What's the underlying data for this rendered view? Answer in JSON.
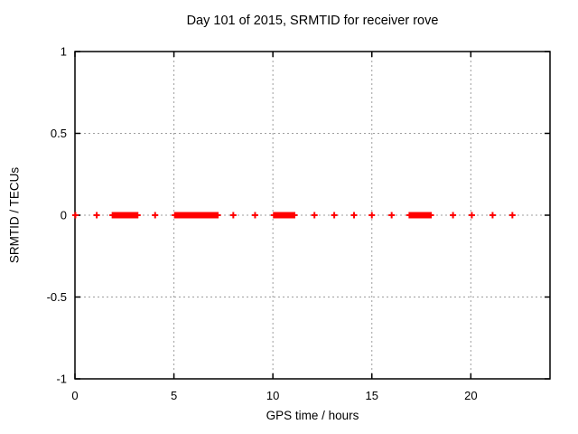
{
  "chart_data": {
    "type": "scatter",
    "title": "Day 101 of 2015, SRMTID for receiver rove",
    "xlabel": "GPS time / hours",
    "ylabel": "SRMTID / TECUs",
    "xlim": [
      0,
      24
    ],
    "ylim": [
      -1,
      1
    ],
    "x_ticks": [
      0,
      5,
      10,
      15,
      20
    ],
    "x_tick_labels": [
      "0",
      "5",
      "10",
      "15",
      "20"
    ],
    "y_ticks": [
      -1,
      -0.5,
      0,
      0.5,
      1
    ],
    "y_tick_labels": [
      "-1",
      "-0.5",
      "0",
      "0.5",
      "1"
    ],
    "grid": true,
    "legend": "none",
    "series": [
      {
        "marker": "plus",
        "color": "#ff0000",
        "y_value": 0,
        "isolated_points_x": [
          0.02,
          1.1,
          4.05,
          8.0,
          9.1,
          12.1,
          13.1,
          14.1,
          15.0,
          16.0,
          19.1,
          20.05,
          21.1,
          22.1
        ],
        "dense_segments_x": [
          [
            1.9,
            3.2
          ],
          [
            5.05,
            7.25
          ],
          [
            10.05,
            11.1
          ],
          [
            16.9,
            18.0
          ]
        ]
      }
    ],
    "colors": {
      "marker": "#ff0000",
      "grid": "#9e9e9e",
      "axis": "#000000",
      "background": "#ffffff",
      "text": "#000000"
    }
  }
}
